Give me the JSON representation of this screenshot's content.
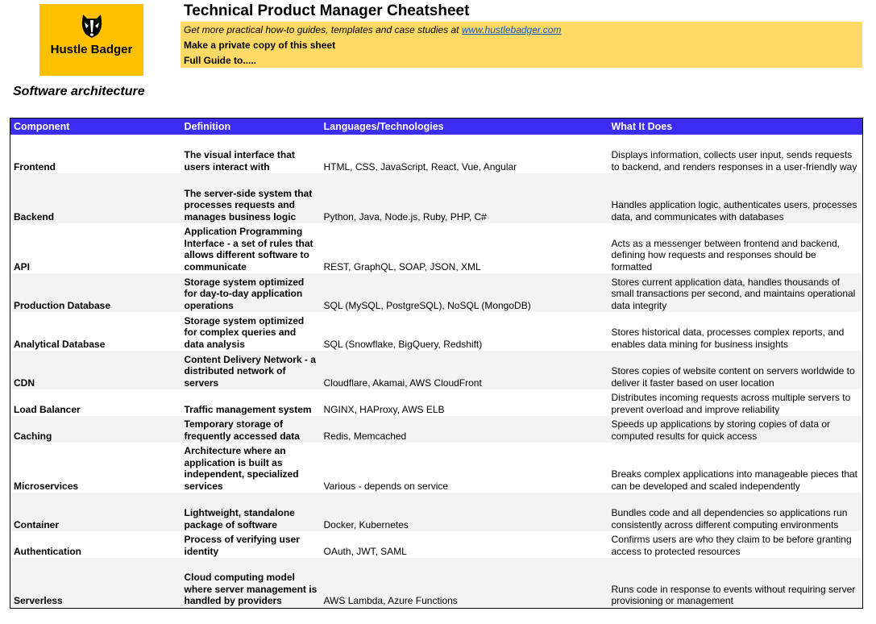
{
  "logo": {
    "text": "Hustle Badger",
    "icon": "badger-icon"
  },
  "header": {
    "title": "Technical Product Manager Cheatsheet",
    "tagline_prefix": "Get more practical how-to guides, templates and case studies at ",
    "tagline_link": "www.hustlebadger.com",
    "private_copy": "Make a private copy of this sheet",
    "full_guide": "Full Guide to....."
  },
  "section_title": "Software architecture",
  "table": {
    "columns": [
      "Component",
      "Definition",
      "Languages/Technologies",
      "What It Does"
    ],
    "rows": [
      {
        "component": "Frontend",
        "definition": "The visual interface that users interact with",
        "technologies": "HTML, CSS, JavaScript, React, Vue, Angular",
        "what": "Displays information, collects user input, sends requests to backend, and renders responses in a user-friendly way"
      },
      {
        "component": "Backend",
        "definition": "The server-side system that processes requests and manages business logic",
        "technologies": "Python, Java, Node.js, Ruby, PHP, C#",
        "what": "Handles application logic, authenticates users, processes data, and communicates with databases"
      },
      {
        "component": "API",
        "definition": "Application Programming Interface - a set of rules that allows different software to communicate",
        "technologies": "REST, GraphQL, SOAP, JSON, XML",
        "what": "Acts as a messenger between frontend and backend, defining how requests and responses should be formatted"
      },
      {
        "component": "Production Database",
        "definition": "Storage system optimized for day-to-day application operations",
        "technologies": "SQL (MySQL, PostgreSQL), NoSQL (MongoDB)",
        "what": "Stores current application data, handles thousands of small transactions per second, and maintains operational data integrity"
      },
      {
        "component": "Analytical Database",
        "definition": "Storage system optimized for complex queries and data analysis",
        "technologies": "SQL (Snowflake, BigQuery, Redshift)",
        "what": "Stores historical data, processes complex reports, and enables data mining for business insights"
      },
      {
        "component": "CDN",
        "definition": "Content Delivery Network - a distributed network of servers",
        "technologies": "Cloudflare, Akamai, AWS CloudFront",
        "what": "Stores copies of website content on servers worldwide to deliver it faster based on user location"
      },
      {
        "component": "Load Balancer",
        "definition": "Traffic management system",
        "technologies": "NGINX, HAProxy, AWS ELB",
        "what": "Distributes incoming requests across multiple servers to prevent overload and improve reliability"
      },
      {
        "component": "Caching",
        "definition": "Temporary storage of frequently accessed data",
        "technologies": "Redis, Memcached",
        "what": "Speeds up applications by storing copies of data or computed results for quick access"
      },
      {
        "component": "Microservices",
        "definition": "Architecture where an application is built as independent, specialized services",
        "technologies": "Various - depends on service",
        "what": "Breaks complex applications into manageable pieces that can be developed and scaled independently"
      },
      {
        "component": "Container",
        "definition": "Lightweight, standalone package of software",
        "technologies": "Docker, Kubernetes",
        "what": "Bundles code and all dependencies so applications run consistently across different computing environments"
      },
      {
        "component": "Authentication",
        "definition": "Process of verifying user identity",
        "technologies": "OAuth, JWT, SAML",
        "what": "Confirms users are who they claim to be before granting access to protected resources"
      },
      {
        "component": "Serverless",
        "definition": "Cloud computing model where server management is handled by providers",
        "technologies": "AWS Lambda, Azure Functions",
        "what": "Runs code in response to events without requiring server provisioning or management"
      }
    ]
  }
}
